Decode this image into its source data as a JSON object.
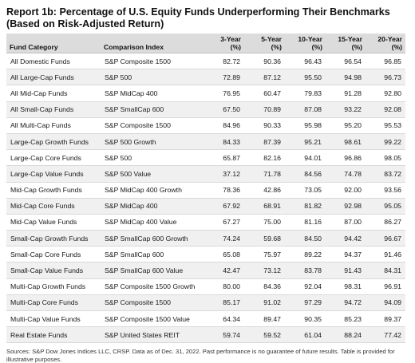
{
  "title": "Report 1b: Percentage of U.S. Equity Funds Underperforming Their Benchmarks (Based on Risk-Adjusted Return)",
  "headers": {
    "category": "Fund Category",
    "index": "Comparison Index",
    "periods": [
      {
        "l1": "3-Year",
        "l2": "(%)"
      },
      {
        "l1": "5-Year",
        "l2": "(%)"
      },
      {
        "l1": "10-Year",
        "l2": "(%)"
      },
      {
        "l1": "15-Year",
        "l2": "(%)"
      },
      {
        "l1": "20-Year",
        "l2": "(%)"
      }
    ]
  },
  "rows": [
    {
      "category": "All Domestic Funds",
      "index": "S&P Composite 1500",
      "values": [
        "82.72",
        "90.36",
        "96.43",
        "96.54",
        "96.85"
      ]
    },
    {
      "category": "All Large-Cap Funds",
      "index": "S&P 500",
      "values": [
        "72.89",
        "87.12",
        "95.50",
        "94.98",
        "96.73"
      ]
    },
    {
      "category": "All Mid-Cap Funds",
      "index": "S&P MidCap 400",
      "values": [
        "76.95",
        "60.47",
        "79.83",
        "91.28",
        "92.80"
      ]
    },
    {
      "category": "All Small-Cap Funds",
      "index": "S&P SmallCap 600",
      "values": [
        "67.50",
        "70.89",
        "87.08",
        "93.22",
        "92.08"
      ]
    },
    {
      "category": "All Multi-Cap Funds",
      "index": "S&P Composite 1500",
      "values": [
        "84.96",
        "90.33",
        "95.98",
        "95.20",
        "95.53"
      ]
    },
    {
      "category": "Large-Cap Growth Funds",
      "index": "S&P 500 Growth",
      "values": [
        "84.33",
        "87.39",
        "95.21",
        "98.61",
        "99.22"
      ]
    },
    {
      "category": "Large-Cap Core Funds",
      "index": "S&P 500",
      "values": [
        "65.87",
        "82.16",
        "94.01",
        "96.86",
        "98.05"
      ]
    },
    {
      "category": "Large-Cap Value Funds",
      "index": "S&P 500 Value",
      "values": [
        "37.12",
        "71.78",
        "84.56",
        "74.78",
        "83.72"
      ]
    },
    {
      "category": "Mid-Cap Growth Funds",
      "index": "S&P MidCap 400 Growth",
      "values": [
        "78.36",
        "42.86",
        "73.05",
        "92.00",
        "93.56"
      ]
    },
    {
      "category": "Mid-Cap Core Funds",
      "index": "S&P MidCap 400",
      "values": [
        "67.92",
        "68.91",
        "81.82",
        "92.98",
        "95.05"
      ]
    },
    {
      "category": "Mid-Cap Value Funds",
      "index": "S&P MidCap 400 Value",
      "values": [
        "67.27",
        "75.00",
        "81.16",
        "87.00",
        "86.27"
      ]
    },
    {
      "category": "Small-Cap Growth Funds",
      "index": "S&P SmallCap 600 Growth",
      "values": [
        "74.24",
        "59.68",
        "84.50",
        "94.42",
        "96.67"
      ]
    },
    {
      "category": "Small-Cap Core Funds",
      "index": "S&P SmallCap 600",
      "values": [
        "65.08",
        "75.97",
        "89.22",
        "94.37",
        "91.46"
      ]
    },
    {
      "category": "Small-Cap Value Funds",
      "index": "S&P SmallCap 600 Value",
      "values": [
        "42.47",
        "73.12",
        "83.78",
        "91.43",
        "84.31"
      ]
    },
    {
      "category": "Multi-Cap Growth Funds",
      "index": "S&P Composite 1500 Growth",
      "values": [
        "80.00",
        "84.36",
        "92.04",
        "98.31",
        "96.91"
      ]
    },
    {
      "category": "Multi-Cap Core Funds",
      "index": "S&P Composite 1500",
      "values": [
        "85.17",
        "91.02",
        "97.29",
        "94.72",
        "94.09"
      ]
    },
    {
      "category": "Multi-Cap Value Funds",
      "index": "S&P Composite 1500 Value",
      "values": [
        "64.34",
        "89.47",
        "90.35",
        "85.23",
        "89.37"
      ]
    },
    {
      "category": "Real Estate Funds",
      "index": "S&P United States REIT",
      "values": [
        "59.74",
        "59.52",
        "61.04",
        "88.24",
        "77.42"
      ]
    }
  ],
  "footnote": "Sources: S&P Dow Jones Indices LLC, CRSP.  Data as of Dec. 31, 2022.  Past performance is no guarantee of future results.  Table is provided for illustrative purposes."
}
